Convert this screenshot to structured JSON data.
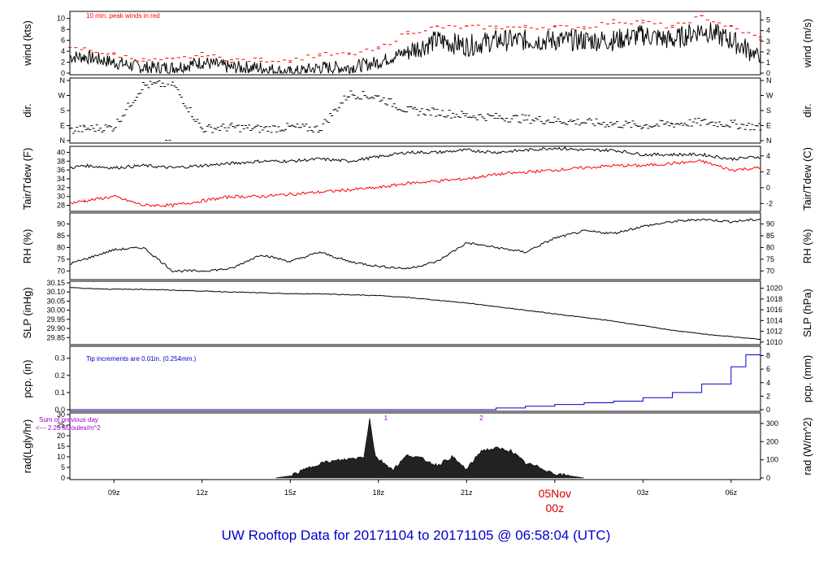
{
  "title": "UW Rooftop Data for 20171104  to  20171105 @ 06:58:04  (UTC)",
  "colors": {
    "black": "#000000",
    "red": "#ff0000",
    "blue": "#0000cc",
    "purple": "#9900cc"
  },
  "chart_data": [
    {
      "type": "line",
      "ylabel": "wind (kts)",
      "ylabel_right": "wind (m/s)",
      "ylim": [
        0,
        11
      ],
      "yticks": [
        0,
        2,
        4,
        6,
        8,
        10
      ],
      "yticks_right": [
        0,
        1,
        2,
        3,
        4,
        5
      ],
      "annotation": "10 min. peak winds in red",
      "series": [
        {
          "color": "#000000",
          "x": [
            7.5,
            8,
            9,
            10,
            11,
            12,
            13,
            14,
            15,
            16,
            17,
            18,
            19,
            20,
            21,
            22,
            23,
            24,
            25,
            26,
            27,
            28,
            29,
            30,
            31
          ],
          "values": [
            3,
            3,
            2,
            1,
            1,
            2,
            1,
            1,
            0,
            1,
            1,
            2,
            4,
            6,
            5,
            6,
            6,
            6,
            6,
            6,
            7,
            6,
            8,
            6,
            3
          ]
        },
        {
          "color": "#ff0000",
          "x": [
            7.5,
            8,
            9,
            10,
            11,
            12,
            13,
            14,
            15,
            16,
            17,
            18,
            19,
            20,
            21,
            22,
            23,
            24,
            25,
            26,
            27,
            28,
            29,
            30,
            31
          ],
          "values": [
            4,
            4,
            3,
            2,
            2,
            3,
            2,
            2,
            2,
            3,
            3,
            4,
            7,
            8,
            8,
            8,
            8,
            8,
            8,
            9,
            9,
            8,
            10,
            8,
            6
          ]
        }
      ]
    },
    {
      "type": "scatter",
      "ylabel": "dir.",
      "ylabel_right": "dir.",
      "ytick_labels": [
        "N",
        "E",
        "S",
        "W",
        "N"
      ],
      "series": [
        {
          "color": "#000000",
          "x": [
            7.5,
            8,
            9,
            10,
            11,
            12,
            13,
            14,
            15,
            16,
            17,
            18,
            19,
            20,
            21,
            22,
            23,
            24,
            25,
            26,
            27,
            28,
            29,
            30,
            31
          ],
          "values": [
            60,
            70,
            80,
            330,
            340,
            70,
            80,
            70,
            80,
            70,
            280,
            260,
            180,
            170,
            150,
            140,
            130,
            120,
            110,
            100,
            90,
            100,
            110,
            100,
            80
          ]
        }
      ]
    },
    {
      "type": "line",
      "ylabel": "Tair/Tdew (F)",
      "ylabel_right": "Tair/Tdew (C)",
      "ylim": [
        27,
        41
      ],
      "yticks": [
        28,
        30,
        32,
        34,
        36,
        38,
        40
      ],
      "yticks_right": [
        -2,
        0,
        2,
        4
      ],
      "series": [
        {
          "color": "#000000",
          "x": [
            7.5,
            8,
            9,
            10,
            11,
            12,
            13,
            14,
            15,
            16,
            17,
            18,
            19,
            20,
            21,
            22,
            23,
            24,
            25,
            26,
            27,
            28,
            29,
            30,
            31
          ],
          "values": [
            36.5,
            37,
            36.5,
            37,
            36.5,
            37,
            37.5,
            38,
            38,
            38.5,
            38,
            39,
            40,
            40,
            40.5,
            40,
            40.5,
            41,
            40.5,
            40.5,
            39.5,
            39.5,
            39.5,
            38.5,
            39
          ]
        },
        {
          "color": "#ff0000",
          "x": [
            7.5,
            8,
            9,
            10,
            11,
            12,
            13,
            14,
            15,
            16,
            17,
            18,
            19,
            20,
            21,
            22,
            23,
            24,
            25,
            26,
            27,
            28,
            29,
            30,
            31
          ],
          "values": [
            28.5,
            29,
            30,
            28,
            28,
            29,
            30,
            30,
            30.5,
            31,
            31.5,
            32,
            33,
            33.5,
            34,
            35,
            35.5,
            36,
            36.5,
            37,
            37,
            37.5,
            38,
            36,
            36.5
          ]
        }
      ]
    },
    {
      "type": "line",
      "ylabel": "RH (%)",
      "ylabel_right": "RH (%)",
      "ylim": [
        67,
        94
      ],
      "yticks": [
        70,
        75,
        80,
        85,
        90
      ],
      "yticks_right": [
        70,
        75,
        80,
        85,
        90
      ],
      "series": [
        {
          "color": "#000000",
          "x": [
            7.5,
            8,
            9,
            10,
            11,
            12,
            13,
            14,
            15,
            16,
            17,
            18,
            19,
            20,
            21,
            22,
            23,
            24,
            25,
            26,
            27,
            28,
            29,
            30,
            31
          ],
          "values": [
            73,
            75,
            79,
            80,
            70,
            70,
            71,
            77,
            74,
            78,
            74,
            72,
            71,
            74,
            82,
            80,
            78,
            84,
            87,
            86,
            89,
            91,
            92,
            91,
            92
          ]
        }
      ]
    },
    {
      "type": "line",
      "ylabel": "SLP (inHg)",
      "ylabel_right": "SLP (hPa)",
      "ylim": [
        29.82,
        30.15
      ],
      "yticks": [
        29.85,
        29.9,
        29.95,
        30.0,
        30.05,
        30.1,
        30.15
      ],
      "ytick_labels": [
        "29.85",
        "29.90",
        "29.95",
        "30.00",
        "30.05",
        "30.10",
        "30.15"
      ],
      "yticks_right": [
        1010,
        1012,
        1014,
        1016,
        1018,
        1020
      ],
      "series": [
        {
          "color": "#000000",
          "x": [
            7.5,
            8,
            9,
            10,
            11,
            12,
            13,
            14,
            15,
            16,
            17,
            18,
            19,
            20,
            21,
            22,
            23,
            24,
            25,
            26,
            27,
            28,
            29,
            30,
            31
          ],
          "values": [
            30.125,
            30.12,
            30.115,
            30.115,
            30.11,
            30.105,
            30.1,
            30.095,
            30.09,
            30.09,
            30.085,
            30.08,
            30.07,
            30.055,
            30.04,
            30.02,
            30,
            29.98,
            29.96,
            29.94,
            29.915,
            29.89,
            29.87,
            29.855,
            29.84
          ]
        }
      ]
    },
    {
      "type": "area",
      "ylabel": "pcp. (in)",
      "ylabel_right": "pcp. (mm)",
      "ylim": [
        0,
        0.36
      ],
      "yticks": [
        0.0,
        0.1,
        0.2,
        0.3
      ],
      "ytick_labels": [
        "0.0",
        "0.1",
        "0.2",
        "0.3"
      ],
      "yticks_right": [
        0,
        2,
        4,
        6,
        8
      ],
      "annotation": "Tip increments are 0.01in. (0.254mm.)",
      "series": [
        {
          "color": "#0000cc",
          "x": [
            7.5,
            20,
            22,
            23,
            24,
            25,
            26,
            27,
            28,
            29,
            30,
            30.5,
            31
          ],
          "values": [
            0,
            0,
            0.01,
            0.02,
            0.03,
            0.04,
            0.05,
            0.07,
            0.1,
            0.15,
            0.25,
            0.32,
            0.35
          ]
        }
      ]
    },
    {
      "type": "area",
      "ylabel": "rad(Lgly/hr)",
      "ylabel_right": "rad (W/m^2)",
      "ylim": [
        0,
        30
      ],
      "yticks": [
        0,
        5,
        10,
        15,
        20,
        25,
        30
      ],
      "yticks_right": [
        0,
        100,
        200,
        300
      ],
      "annotation": "Sum of previous day",
      "annotation2": "<--- 2.25 MJoules/m^2",
      "markers": [
        {
          "x": 18.25,
          "label": "1"
        },
        {
          "x": 21.5,
          "label": "2"
        }
      ],
      "series": [
        {
          "color": "#000000",
          "x": [
            14.5,
            15,
            15.5,
            16,
            16.5,
            17,
            17.5,
            17.7,
            17.9,
            18.2,
            18.5,
            19,
            19.5,
            20,
            20.5,
            21,
            21.5,
            22,
            22.5,
            23,
            23.5,
            24,
            24.5,
            25
          ],
          "values": [
            0,
            1,
            4,
            7,
            8,
            9,
            10,
            28,
            10,
            7,
            4,
            11,
            9,
            6,
            10,
            4,
            13,
            14,
            13,
            7,
            5,
            2,
            1,
            0
          ]
        }
      ]
    }
  ],
  "xaxis": {
    "range": [
      7.5,
      31
    ],
    "ticks": [
      9,
      12,
      15,
      18,
      21,
      24,
      27,
      30
    ],
    "labels": [
      "09z",
      "12z",
      "15z",
      "18z",
      "21z",
      "05Nov",
      "03z",
      "06z"
    ],
    "sublabel": "00z"
  }
}
